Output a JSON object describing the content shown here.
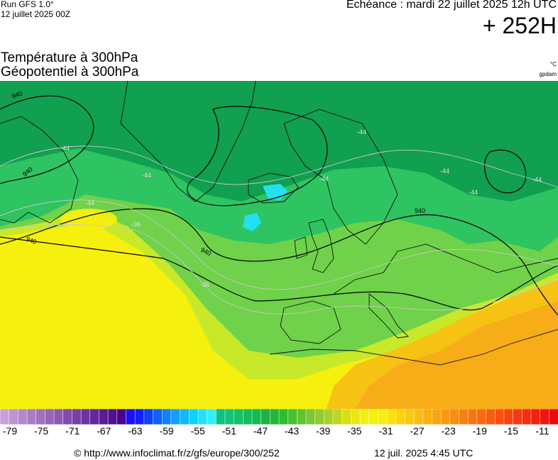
{
  "header": {
    "run_label": "Run GFS 1.0°",
    "run_date": "12 juillet 2025 00Z",
    "echeance": "Echéance : mardi 22 juillet 2025 12h UTC",
    "horizon": "+ 252H"
  },
  "titles": {
    "line1": "Température à 300hPa",
    "line2": "Géopotentiel à 300hPa",
    "unit_temp": "°C",
    "unit_geo": "gpdam"
  },
  "map": {
    "geopotential_labels": [
      "940",
      "940",
      "940",
      "940",
      "940"
    ],
    "temperature_labels": [
      "-44",
      "-44",
      "-44",
      "-44",
      "-44",
      "-44",
      "-44",
      "-44",
      "-36",
      "-36"
    ],
    "colors": {
      "cold_core": "#22e0f0",
      "dark_green": "#10a050",
      "green": "#2ec462",
      "light_green": "#6fd24a",
      "yellow_green": "#c8e82a",
      "yellow": "#f6f00e",
      "orange": "#f7ad17"
    }
  },
  "scale": {
    "tick_labels": [
      "-79",
      "-75",
      "-71",
      "-67",
      "-63",
      "-59",
      "-55",
      "-51",
      "-47",
      "-43",
      "-39",
      "-35",
      "-31",
      "-27",
      "-23",
      "-19",
      "-15",
      "-11"
    ],
    "colors": [
      "#c8a0d8",
      "#be94d2",
      "#b488cc",
      "#aa7cc6",
      "#a070c0",
      "#9664ba",
      "#8c58b4",
      "#824cae",
      "#7840a8",
      "#6e34a2",
      "#64289c",
      "#5a1c96",
      "#501090",
      "#46048a",
      "#1a10ff",
      "#1020ff",
      "#1040ff",
      "#1060ff",
      "#1080ff",
      "#10a0ff",
      "#10b8ff",
      "#10d0ff",
      "#20e4ff",
      "#30f0ff",
      "#10c080",
      "#12c474",
      "#14c068",
      "#16bc5c",
      "#18b850",
      "#1ab444",
      "#20b838",
      "#30bc30",
      "#48c030",
      "#60c430",
      "#78c830",
      "#90cc30",
      "#a8d028",
      "#c0d420",
      "#d8e010",
      "#e8e810",
      "#f0f010",
      "#f4f010",
      "#f8ec10",
      "#fae010",
      "#fad410",
      "#fac810",
      "#fabc10",
      "#fab010",
      "#faa410",
      "#fa9810",
      "#fa8c10",
      "#fa8010",
      "#fa7410",
      "#fa6810",
      "#fa5c10",
      "#fa5010",
      "#fa4410",
      "#fa3810",
      "#f82c10",
      "#f42010",
      "#f01410",
      "#ec0810"
    ]
  },
  "footer": {
    "copyright": "© http://www.infoclimat.fr/z/gfs/europe/300/252",
    "generated": "12 juil. 2025  4:45 UTC"
  }
}
